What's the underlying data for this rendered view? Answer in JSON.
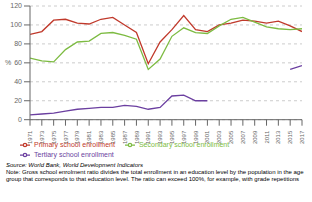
{
  "chart_data": {
    "type": "line",
    "ylabel": "%",
    "x": [
      1971,
      1973,
      1975,
      1977,
      1979,
      1981,
      1983,
      1985,
      1987,
      1989,
      1991,
      1993,
      1995,
      1997,
      1999,
      2001,
      2003,
      2005,
      2007,
      2009,
      2011,
      2013,
      2015,
      2017
    ],
    "series": [
      {
        "name": "Primary school enrollment",
        "color": "#c0392b",
        "values": [
          90,
          93,
          105,
          106,
          102,
          101,
          106,
          108,
          100,
          92,
          59,
          82,
          95,
          110,
          95,
          93,
          100,
          102,
          105,
          104,
          102,
          104,
          99,
          93
        ]
      },
      {
        "name": "Secondary school enrollment",
        "color": "#7dbb42",
        "values": [
          65,
          62,
          61,
          74,
          82,
          83,
          91,
          92,
          89,
          85,
          53,
          64,
          88,
          97,
          92,
          91,
          99,
          106,
          108,
          103,
          98,
          96,
          95,
          96
        ]
      },
      {
        "name": "Tertiary school enrollment",
        "color": "#6b3fa0",
        "values": [
          5,
          6,
          7,
          9,
          11,
          12,
          13,
          13,
          15,
          14,
          11,
          13,
          25,
          26,
          20,
          20,
          null,
          null,
          null,
          null,
          null,
          null,
          53,
          57
        ]
      }
    ],
    "xlim": [
      1971,
      2017
    ],
    "xticks": [
      1971,
      1973,
      1975,
      1977,
      1979,
      1981,
      1983,
      1985,
      1987,
      1989,
      1991,
      1993,
      1995,
      1997,
      1999,
      2001,
      2003,
      2005,
      2007,
      2009,
      2011,
      2013,
      2015,
      2017
    ],
    "ylim": [
      0,
      120
    ],
    "yticks": [
      0,
      20,
      40,
      60,
      80,
      100,
      120
    ],
    "grid": true,
    "legend": "bottom",
    "annotations": [
      "Source: World Bank, World Development Indicators",
      "Note: Gross school enrolment ratio divides the total enrollment in an education level by the population in the age",
      "group that corresponds to that education level. The ratio can exceed 100%, for example, with grade repetitions"
    ]
  }
}
